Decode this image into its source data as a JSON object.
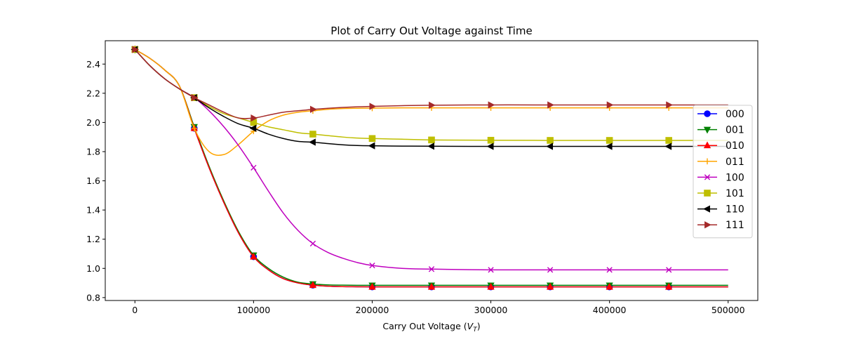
{
  "chart_data": {
    "type": "line",
    "title": "Plot of Carry Out Voltage against Time",
    "xlabel_main": "Carry Out Voltage (",
    "xlabel_var": "V",
    "xlabel_sub": "T",
    "xlabel_close": ")",
    "ylabel": "",
    "xlim": [
      -25000,
      525000
    ],
    "ylim": [
      0.78,
      2.56
    ],
    "x_ticks": [
      0,
      100000,
      200000,
      300000,
      400000,
      500000
    ],
    "y_ticks": [
      0.8,
      1.0,
      1.2,
      1.4,
      1.6,
      1.8,
      2.0,
      2.2,
      2.4
    ],
    "grid": false,
    "legend_position": "center-right",
    "marker_x": [
      0,
      50000,
      100000,
      150000,
      200000,
      250000,
      300000,
      350000,
      400000,
      450000
    ],
    "curve_x": [
      0,
      12500,
      25000,
      37500,
      50000,
      62500,
      75000,
      87500,
      100000,
      112500,
      125000,
      137500,
      150000,
      162500,
      175000,
      187500,
      200000,
      225000,
      250000,
      300000,
      350000,
      400000,
      450000,
      500000
    ],
    "series": [
      {
        "name": "000",
        "color": "#0000ff",
        "marker": "circle",
        "curve_y": [
          2.5,
          2.44,
          2.36,
          2.25,
          1.96,
          1.69,
          1.45,
          1.24,
          1.08,
          0.99,
          0.93,
          0.9,
          0.885,
          0.878,
          0.875,
          0.874,
          0.873,
          0.873,
          0.873,
          0.873,
          0.873,
          0.873,
          0.873,
          0.873
        ],
        "marker_y": [
          2.5,
          1.96,
          1.08,
          0.885,
          0.873,
          0.873,
          0.873,
          0.873,
          0.873,
          0.873
        ]
      },
      {
        "name": "001",
        "color": "#008000",
        "marker": "triangle-down",
        "curve_y": [
          2.5,
          2.44,
          2.36,
          2.25,
          1.97,
          1.7,
          1.46,
          1.25,
          1.09,
          1.0,
          0.94,
          0.905,
          0.893,
          0.887,
          0.885,
          0.884,
          0.884,
          0.884,
          0.884,
          0.884,
          0.884,
          0.884,
          0.884,
          0.884
        ],
        "marker_y": [
          2.5,
          1.97,
          1.09,
          0.893,
          0.884,
          0.884,
          0.884,
          0.884,
          0.884,
          0.884
        ]
      },
      {
        "name": "010",
        "color": "#ff0000",
        "marker": "triangle-up",
        "curve_y": [
          2.5,
          2.44,
          2.36,
          2.25,
          1.96,
          1.69,
          1.45,
          1.24,
          1.08,
          0.99,
          0.93,
          0.9,
          0.885,
          0.878,
          0.875,
          0.874,
          0.873,
          0.873,
          0.873,
          0.873,
          0.873,
          0.873,
          0.873,
          0.873
        ],
        "marker_y": [
          2.5,
          1.96,
          1.08,
          0.885,
          0.873,
          0.873,
          0.873,
          0.873,
          0.873,
          0.873
        ]
      },
      {
        "name": "011",
        "color": "#ffa500",
        "marker": "plus",
        "curve_y": [
          2.5,
          2.44,
          2.36,
          2.25,
          1.96,
          1.8,
          1.78,
          1.85,
          1.94,
          2.01,
          2.05,
          2.07,
          2.08,
          2.09,
          2.095,
          2.097,
          2.098,
          2.1,
          2.1,
          2.1,
          2.1,
          2.1,
          2.1,
          2.1
        ],
        "marker_y": [
          2.5,
          1.96,
          1.94,
          2.08,
          2.098,
          2.1,
          2.1,
          2.1,
          2.1,
          2.1
        ]
      },
      {
        "name": "100",
        "color": "#bf00bf",
        "marker": "x",
        "curve_y": [
          2.5,
          2.39,
          2.3,
          2.23,
          2.17,
          2.08,
          1.97,
          1.84,
          1.69,
          1.53,
          1.38,
          1.26,
          1.17,
          1.11,
          1.07,
          1.04,
          1.02,
          1.0,
          0.995,
          0.99,
          0.99,
          0.99,
          0.99,
          0.99
        ],
        "marker_y": [
          2.5,
          2.17,
          1.69,
          1.17,
          1.02,
          0.995,
          0.99,
          0.99,
          0.99,
          0.99
        ]
      },
      {
        "name": "101",
        "color": "#bfbf00",
        "marker": "square",
        "curve_y": [
          2.5,
          2.39,
          2.3,
          2.23,
          2.17,
          2.11,
          2.06,
          2.03,
          2.0,
          1.97,
          1.95,
          1.93,
          1.92,
          1.91,
          1.9,
          1.893,
          1.89,
          1.885,
          1.88,
          1.878,
          1.877,
          1.877,
          1.877,
          1.877
        ],
        "marker_y": [
          2.5,
          2.17,
          2.0,
          1.92,
          1.89,
          1.88,
          1.878,
          1.877,
          1.877,
          1.877
        ]
      },
      {
        "name": "110",
        "color": "#000000",
        "marker": "triangle-left",
        "curve_y": [
          2.5,
          2.39,
          2.3,
          2.23,
          2.17,
          2.1,
          2.04,
          1.99,
          1.96,
          1.92,
          1.89,
          1.87,
          1.865,
          1.855,
          1.847,
          1.842,
          1.84,
          1.838,
          1.837,
          1.836,
          1.836,
          1.836,
          1.836,
          1.836
        ],
        "marker_y": [
          2.5,
          2.17,
          1.96,
          1.865,
          1.84,
          1.837,
          1.836,
          1.836,
          1.836,
          1.836
        ]
      },
      {
        "name": "111",
        "color": "#a52a2a",
        "marker": "triangle-right",
        "curve_y": [
          2.5,
          2.39,
          2.3,
          2.23,
          2.17,
          2.12,
          2.07,
          2.03,
          2.03,
          2.05,
          2.07,
          2.08,
          2.09,
          2.097,
          2.103,
          2.107,
          2.11,
          2.115,
          2.118,
          2.12,
          2.12,
          2.12,
          2.12,
          2.12
        ],
        "marker_y": [
          2.5,
          2.17,
          2.03,
          2.09,
          2.11,
          2.118,
          2.12,
          2.12,
          2.12,
          2.12
        ]
      }
    ]
  }
}
